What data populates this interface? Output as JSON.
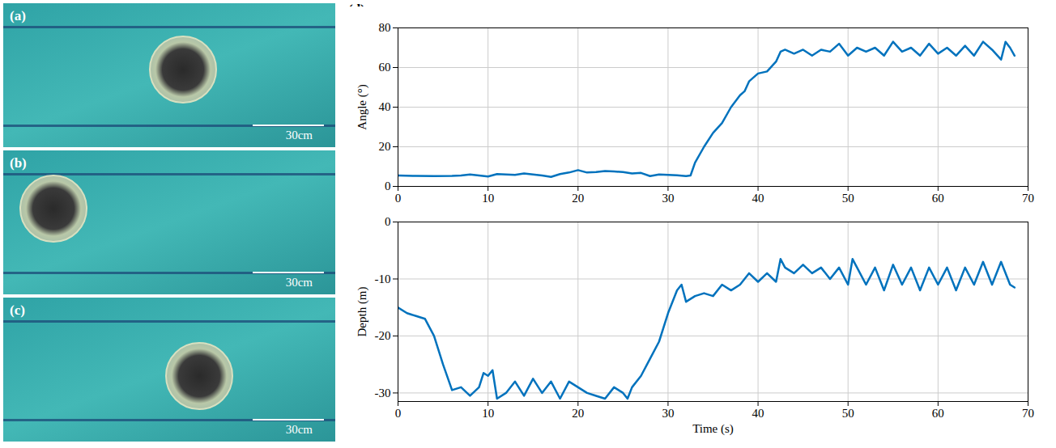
{
  "photos": [
    {
      "label": "(a)",
      "scale_bar": "30cm"
    },
    {
      "label": "(b)",
      "scale_bar": "30cm"
    },
    {
      "label": "(c)",
      "scale_bar": "30cm"
    }
  ],
  "chart_panel_label": "(d)",
  "chart_data": [
    {
      "type": "line",
      "ylabel": "Angle (°)",
      "color": "#0072bd",
      "grid": true,
      "xlim": [
        0,
        70
      ],
      "xticks": [
        0,
        10,
        20,
        30,
        40,
        50,
        60,
        70
      ],
      "ylim": [
        0,
        80
      ],
      "yticks": [
        0,
        20,
        40,
        60,
        80
      ],
      "x": [
        0,
        2,
        4,
        6,
        7,
        8,
        9,
        10,
        11,
        12,
        13,
        14,
        15,
        16,
        17,
        18,
        19,
        20,
        21,
        22,
        23,
        24,
        25,
        26,
        27,
        28,
        29,
        30,
        31,
        32,
        32.5,
        33,
        34,
        35,
        36,
        37,
        38,
        38.5,
        39,
        40,
        41,
        42,
        42.5,
        43,
        44,
        45,
        46,
        47,
        48,
        49,
        50,
        51,
        52,
        53,
        54,
        55,
        56,
        57,
        58,
        59,
        60,
        61,
        62,
        63,
        64,
        65,
        66,
        67,
        67.5,
        68,
        68.5
      ],
      "values": [
        5.5,
        5.3,
        5.2,
        5.3,
        5.5,
        6,
        5.5,
        5,
        6.2,
        6,
        5.8,
        6.5,
        6,
        5.5,
        4.8,
        6.2,
        7,
        8.2,
        7,
        7.2,
        7.8,
        7.6,
        7.2,
        6.5,
        6.8,
        5.2,
        6,
        5.8,
        5.6,
        5.2,
        5.5,
        12,
        20,
        27,
        32,
        40,
        46,
        48,
        53,
        57,
        58,
        63,
        68,
        69,
        67,
        69,
        66,
        69,
        68,
        72,
        66,
        70,
        68,
        70,
        66,
        73,
        68,
        70,
        66,
        72,
        67,
        70,
        66,
        71,
        66,
        73,
        69,
        64,
        73,
        70,
        66
      ]
    },
    {
      "type": "line",
      "ylabel": "Depth (m)",
      "xlabel": "Time (s)",
      "color": "#0072bd",
      "grid": true,
      "xlim": [
        0,
        70
      ],
      "xticks": [
        0,
        10,
        20,
        30,
        40,
        50,
        60,
        70
      ],
      "ylim": [
        -31.5,
        0
      ],
      "yticks": [
        -30,
        -20,
        -10,
        0
      ],
      "x": [
        0,
        1,
        2,
        3,
        4,
        5,
        6,
        7,
        8,
        9,
        9.5,
        10,
        10.5,
        11,
        12,
        13,
        14,
        15,
        16,
        17,
        18,
        19,
        20,
        21,
        22,
        23,
        24,
        25,
        25.5,
        26,
        27,
        28,
        29,
        30,
        31,
        31.5,
        32,
        33,
        34,
        35,
        36,
        37,
        38,
        39,
        40,
        41,
        42,
        42.5,
        43,
        44,
        45,
        46,
        47,
        48,
        49,
        50,
        50.5,
        51,
        52,
        53,
        54,
        55,
        56,
        57,
        58,
        59,
        60,
        61,
        62,
        63,
        64,
        65,
        66,
        67,
        68,
        68.5
      ],
      "values": [
        -15,
        -16,
        -16.5,
        -17,
        -20,
        -25,
        -29.5,
        -29,
        -30.5,
        -29,
        -26.5,
        -27,
        -26,
        -31,
        -30,
        -28,
        -30.5,
        -27.5,
        -30,
        -28,
        -31,
        -28,
        -29,
        -30,
        -30.5,
        -31,
        -29,
        -30,
        -31,
        -29,
        -27,
        -24,
        -21,
        -16,
        -12,
        -11,
        -14,
        -13,
        -12.5,
        -13,
        -11,
        -12,
        -11,
        -9,
        -10.5,
        -9,
        -10.5,
        -6.5,
        -8,
        -9,
        -7.5,
        -9,
        -8,
        -10,
        -8,
        -11,
        -6.5,
        -8,
        -11,
        -8,
        -12,
        -7.5,
        -11,
        -8,
        -12,
        -8,
        -11,
        -8,
        -12,
        -8,
        -11,
        -7,
        -11,
        -7,
        -11,
        -11.5
      ]
    }
  ]
}
